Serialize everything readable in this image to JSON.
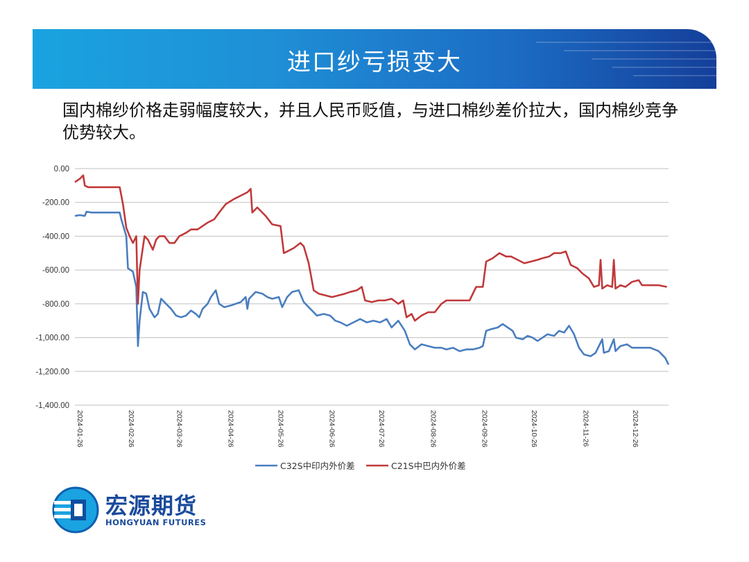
{
  "header": {
    "title": "进口纱亏损变大"
  },
  "intro_text": "国内棉纱价格走弱幅度较大，并且人民币贬值，与进口棉纱差价拉大，国内棉纱竞争优势较大。",
  "logo": {
    "name_cn": "宏源期货",
    "name_en": "HONGYUAN FUTURES"
  },
  "colors": {
    "series_blue": "#4a7ebf",
    "series_red": "#c0393b",
    "grid": "#bfbfbf"
  },
  "chart_data": {
    "type": "line",
    "title": "",
    "xlabel": "",
    "ylabel": "",
    "ylim": [
      -1400,
      0
    ],
    "grid": true,
    "legend_position": "bottom",
    "x_ticks": [
      "2024-01-26",
      "2024-02-26",
      "2024-03-26",
      "2024-04-26",
      "2024-05-26",
      "2024-06-26",
      "2024-07-26",
      "2024-08-26",
      "2024-09-26",
      "2024-10-26",
      "2024-11-26",
      "2024-12-26"
    ],
    "y_ticks": [
      "0.00",
      "-200.00",
      "-400.00",
      "-600.00",
      "-800.00",
      "-1,000.00",
      "-1,200.00",
      "-1,400.00"
    ],
    "series": [
      {
        "name": "C32S中印内外价差",
        "color": "#4a7ebf",
        "points": [
          [
            "2024-01-26",
            -280
          ],
          [
            "2024-01-29",
            -275
          ],
          [
            "2024-02-01",
            -280
          ],
          [
            "2024-02-02",
            -255
          ],
          [
            "2024-02-05",
            -260
          ],
          [
            "2024-02-22",
            -260
          ],
          [
            "2024-02-23",
            -300
          ],
          [
            "2024-02-26",
            -400
          ],
          [
            "2024-02-27",
            -590
          ],
          [
            "2024-03-01",
            -610
          ],
          [
            "2024-03-03",
            -700
          ],
          [
            "2024-03-04",
            -1050
          ],
          [
            "2024-03-05",
            -900
          ],
          [
            "2024-03-07",
            -730
          ],
          [
            "2024-03-09",
            -740
          ],
          [
            "2024-03-11",
            -830
          ],
          [
            "2024-03-14",
            -880
          ],
          [
            "2024-03-16",
            -860
          ],
          [
            "2024-03-18",
            -770
          ],
          [
            "2024-03-21",
            -800
          ],
          [
            "2024-03-24",
            -830
          ],
          [
            "2024-03-27",
            -870
          ],
          [
            "2024-03-30",
            -880
          ],
          [
            "2024-04-02",
            -870
          ],
          [
            "2024-04-05",
            -840
          ],
          [
            "2024-04-08",
            -860
          ],
          [
            "2024-04-10",
            -880
          ],
          [
            "2024-04-12",
            -830
          ],
          [
            "2024-04-15",
            -800
          ],
          [
            "2024-04-17",
            -760
          ],
          [
            "2024-04-20",
            -720
          ],
          [
            "2024-04-22",
            -800
          ],
          [
            "2024-04-25",
            -820
          ],
          [
            "2024-04-29",
            -810
          ],
          [
            "2024-05-02",
            -800
          ],
          [
            "2024-05-05",
            -790
          ],
          [
            "2024-05-08",
            -760
          ],
          [
            "2024-05-09",
            -830
          ],
          [
            "2024-05-10",
            -770
          ],
          [
            "2024-05-14",
            -730
          ],
          [
            "2024-05-18",
            -740
          ],
          [
            "2024-05-21",
            -760
          ],
          [
            "2024-05-24",
            -770
          ],
          [
            "2024-05-28",
            -760
          ],
          [
            "2024-05-30",
            -820
          ],
          [
            "2024-06-02",
            -760
          ],
          [
            "2024-06-05",
            -730
          ],
          [
            "2024-06-09",
            -720
          ],
          [
            "2024-06-12",
            -790
          ],
          [
            "2024-06-16",
            -830
          ],
          [
            "2024-06-20",
            -870
          ],
          [
            "2024-06-24",
            -860
          ],
          [
            "2024-06-28",
            -870
          ],
          [
            "2024-07-01",
            -900
          ],
          [
            "2024-07-04",
            -910
          ],
          [
            "2024-07-08",
            -930
          ],
          [
            "2024-07-12",
            -910
          ],
          [
            "2024-07-16",
            -890
          ],
          [
            "2024-07-20",
            -910
          ],
          [
            "2024-07-24",
            -900
          ],
          [
            "2024-07-28",
            -910
          ],
          [
            "2024-08-01",
            -890
          ],
          [
            "2024-08-04",
            -940
          ],
          [
            "2024-08-08",
            -900
          ],
          [
            "2024-08-12",
            -960
          ],
          [
            "2024-08-15",
            -1040
          ],
          [
            "2024-08-18",
            -1070
          ],
          [
            "2024-08-22",
            -1040
          ],
          [
            "2024-08-26",
            -1050
          ],
          [
            "2024-08-30",
            -1060
          ],
          [
            "2024-09-03",
            -1060
          ],
          [
            "2024-09-06",
            -1070
          ],
          [
            "2024-09-10",
            -1060
          ],
          [
            "2024-09-14",
            -1080
          ],
          [
            "2024-09-18",
            -1070
          ],
          [
            "2024-09-22",
            -1070
          ],
          [
            "2024-09-26",
            -1060
          ],
          [
            "2024-09-28",
            -1050
          ],
          [
            "2024-09-30",
            -960
          ],
          [
            "2024-10-03",
            -950
          ],
          [
            "2024-10-07",
            -940
          ],
          [
            "2024-10-10",
            -920
          ],
          [
            "2024-10-13",
            -940
          ],
          [
            "2024-10-16",
            -960
          ],
          [
            "2024-10-18",
            -1000
          ],
          [
            "2024-10-22",
            -1010
          ],
          [
            "2024-10-25",
            -990
          ],
          [
            "2024-10-28",
            -1000
          ],
          [
            "2024-10-31",
            -1020
          ],
          [
            "2024-11-03",
            -1000
          ],
          [
            "2024-11-06",
            -980
          ],
          [
            "2024-11-10",
            -990
          ],
          [
            "2024-11-13",
            -960
          ],
          [
            "2024-11-16",
            -970
          ],
          [
            "2024-11-19",
            -930
          ],
          [
            "2024-11-22",
            -980
          ],
          [
            "2024-11-25",
            -1060
          ],
          [
            "2024-11-28",
            -1100
          ],
          [
            "2024-12-02",
            -1110
          ],
          [
            "2024-12-05",
            -1090
          ],
          [
            "2024-12-09",
            -1010
          ],
          [
            "2024-12-10",
            -1090
          ],
          [
            "2024-12-13",
            -1080
          ],
          [
            "2024-12-16",
            -1010
          ],
          [
            "2024-12-17",
            -1080
          ],
          [
            "2024-12-20",
            -1050
          ],
          [
            "2024-12-24",
            -1040
          ],
          [
            "2024-12-27",
            -1060
          ],
          [
            "2025-01-01",
            -1060
          ],
          [
            "2025-01-07",
            -1060
          ],
          [
            "2025-01-12",
            -1080
          ],
          [
            "2025-01-16",
            -1120
          ],
          [
            "2025-01-18",
            -1160
          ]
        ]
      },
      {
        "name": "C21S中巴内外价差",
        "color": "#c0393b",
        "points": [
          [
            "2024-01-26",
            -80
          ],
          [
            "2024-01-29",
            -60
          ],
          [
            "2024-01-31",
            -40
          ],
          [
            "2024-02-01",
            -100
          ],
          [
            "2024-02-03",
            -110
          ],
          [
            "2024-02-22",
            -110
          ],
          [
            "2024-02-24",
            -210
          ],
          [
            "2024-02-26",
            -350
          ],
          [
            "2024-02-28",
            -400
          ],
          [
            "2024-03-01",
            -440
          ],
          [
            "2024-03-03",
            -400
          ],
          [
            "2024-03-04",
            -800
          ],
          [
            "2024-03-05",
            -600
          ],
          [
            "2024-03-08",
            -400
          ],
          [
            "2024-03-10",
            -420
          ],
          [
            "2024-03-13",
            -480
          ],
          [
            "2024-03-15",
            -420
          ],
          [
            "2024-03-17",
            -400
          ],
          [
            "2024-03-20",
            -400
          ],
          [
            "2024-03-23",
            -440
          ],
          [
            "2024-03-26",
            -440
          ],
          [
            "2024-03-29",
            -400
          ],
          [
            "2024-04-02",
            -380
          ],
          [
            "2024-04-05",
            -360
          ],
          [
            "2024-04-09",
            -360
          ],
          [
            "2024-04-12",
            -340
          ],
          [
            "2024-04-15",
            -320
          ],
          [
            "2024-04-19",
            -300
          ],
          [
            "2024-04-22",
            -260
          ],
          [
            "2024-04-26",
            -210
          ],
          [
            "2024-05-01",
            -180
          ],
          [
            "2024-05-05",
            -160
          ],
          [
            "2024-05-09",
            -140
          ],
          [
            "2024-05-11",
            -120
          ],
          [
            "2024-05-12",
            -260
          ],
          [
            "2024-05-15",
            -230
          ],
          [
            "2024-05-20",
            -280
          ],
          [
            "2024-05-24",
            -330
          ],
          [
            "2024-05-29",
            -340
          ],
          [
            "2024-05-31",
            -500
          ],
          [
            "2024-06-02",
            -490
          ],
          [
            "2024-06-06",
            -470
          ],
          [
            "2024-06-10",
            -440
          ],
          [
            "2024-06-12",
            -460
          ],
          [
            "2024-06-15",
            -560
          ],
          [
            "2024-06-18",
            -720
          ],
          [
            "2024-06-21",
            -740
          ],
          [
            "2024-06-25",
            -750
          ],
          [
            "2024-06-29",
            -760
          ],
          [
            "2024-07-03",
            -750
          ],
          [
            "2024-07-07",
            -740
          ],
          [
            "2024-07-10",
            -730
          ],
          [
            "2024-07-14",
            -720
          ],
          [
            "2024-07-17",
            -700
          ],
          [
            "2024-07-19",
            -780
          ],
          [
            "2024-07-23",
            -790
          ],
          [
            "2024-07-27",
            -780
          ],
          [
            "2024-07-31",
            -780
          ],
          [
            "2024-08-04",
            -770
          ],
          [
            "2024-08-08",
            -800
          ],
          [
            "2024-08-11",
            -780
          ],
          [
            "2024-08-13",
            -880
          ],
          [
            "2024-08-16",
            -860
          ],
          [
            "2024-08-18",
            -900
          ],
          [
            "2024-08-22",
            -870
          ],
          [
            "2024-08-26",
            -850
          ],
          [
            "2024-08-30",
            -850
          ],
          [
            "2024-09-03",
            -800
          ],
          [
            "2024-09-06",
            -780
          ],
          [
            "2024-09-11",
            -780
          ],
          [
            "2024-09-16",
            -780
          ],
          [
            "2024-09-20",
            -780
          ],
          [
            "2024-09-24",
            -700
          ],
          [
            "2024-09-28",
            -700
          ],
          [
            "2024-09-30",
            -550
          ],
          [
            "2024-10-04",
            -530
          ],
          [
            "2024-10-08",
            -500
          ],
          [
            "2024-10-12",
            -520
          ],
          [
            "2024-10-15",
            -520
          ],
          [
            "2024-10-19",
            -540
          ],
          [
            "2024-10-23",
            -560
          ],
          [
            "2024-10-27",
            -550
          ],
          [
            "2024-10-31",
            -540
          ],
          [
            "2024-11-03",
            -530
          ],
          [
            "2024-11-07",
            -520
          ],
          [
            "2024-11-10",
            -500
          ],
          [
            "2024-11-14",
            -500
          ],
          [
            "2024-11-17",
            -490
          ],
          [
            "2024-11-20",
            -570
          ],
          [
            "2024-11-24",
            -590
          ],
          [
            "2024-11-27",
            -620
          ],
          [
            "2024-12-01",
            -650
          ],
          [
            "2024-12-04",
            -700
          ],
          [
            "2024-12-07",
            -690
          ],
          [
            "2024-12-08",
            -540
          ],
          [
            "2024-12-09",
            -710
          ],
          [
            "2024-12-12",
            -690
          ],
          [
            "2024-12-15",
            -700
          ],
          [
            "2024-12-16",
            -540
          ],
          [
            "2024-12-17",
            -710
          ],
          [
            "2024-12-20",
            -690
          ],
          [
            "2024-12-23",
            -700
          ],
          [
            "2024-12-27",
            -670
          ],
          [
            "2024-12-31",
            -660
          ],
          [
            "2025-01-02",
            -690
          ],
          [
            "2025-01-07",
            -690
          ],
          [
            "2025-01-12",
            -690
          ],
          [
            "2025-01-17",
            -700
          ]
        ]
      }
    ]
  }
}
